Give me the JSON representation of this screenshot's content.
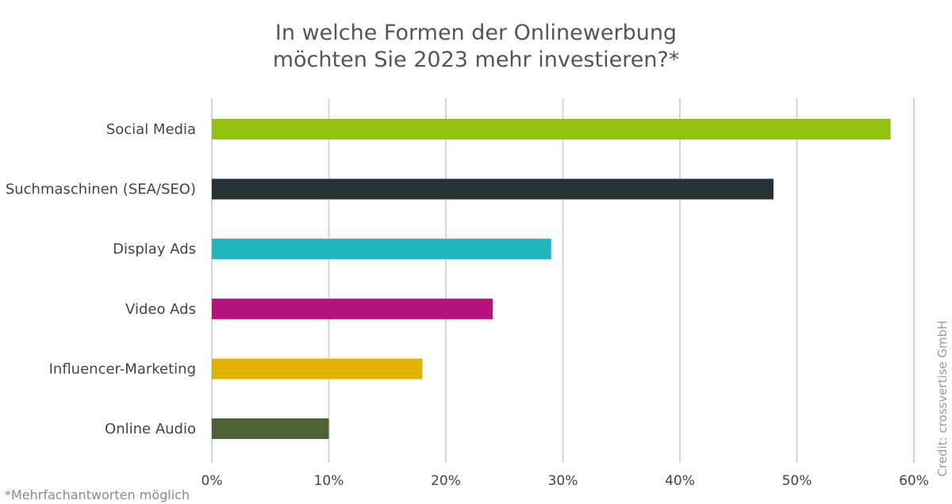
{
  "chart_data": {
    "type": "bar",
    "orientation": "horizontal",
    "title_lines": [
      "In welche Formen der Onlinewerbung",
      "möchten Sie 2023 mehr investieren?*"
    ],
    "categories": [
      "Social Media",
      "Suchmaschinen (SEA/SEO)",
      "Display Ads",
      "Video Ads",
      "Influencer-Marketing",
      "Online Audio"
    ],
    "values": [
      58,
      48,
      29,
      24,
      18,
      10
    ],
    "colors": [
      "#94c011",
      "#263438",
      "#22b5c0",
      "#b5137b",
      "#e2b400",
      "#4f6338"
    ],
    "unit": "%",
    "xlim": [
      0,
      60
    ],
    "ticks": [
      "0%",
      "10%",
      "20%",
      "30%",
      "40%",
      "50%",
      "60%"
    ],
    "grid": true,
    "legend": "none",
    "footnote": "*Mehrfachantworten möglich",
    "credit": "Credit: crossvertise GmbH"
  }
}
